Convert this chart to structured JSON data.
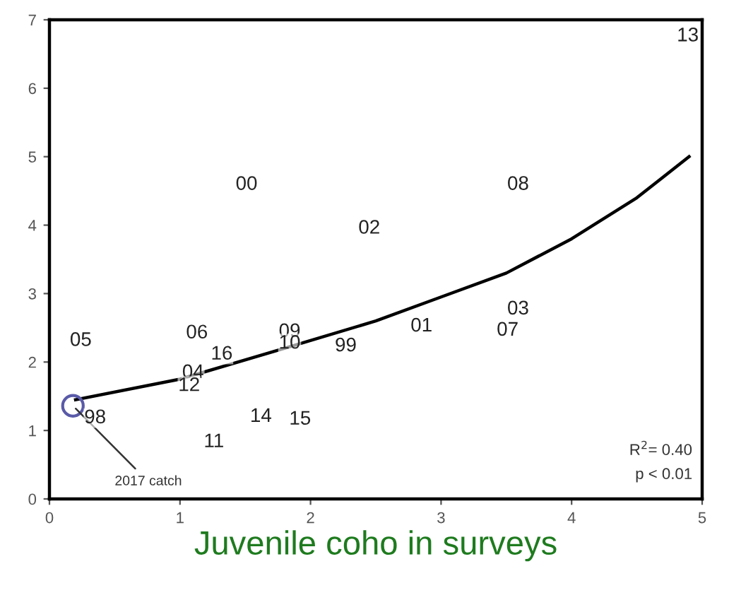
{
  "chart_data": {
    "type": "scatter",
    "xlabel": "Juvenile coho in surveys",
    "xlim": [
      0,
      5
    ],
    "ylim": [
      0,
      7
    ],
    "xticks": [
      0,
      1,
      2,
      3,
      4,
      5
    ],
    "yticks": [
      0,
      1,
      2,
      3,
      4,
      5,
      6,
      7
    ],
    "grid": false,
    "legend": false,
    "series": [
      {
        "type": "line",
        "color": "#000000",
        "x": [
          0.2,
          1.0,
          1.8,
          2.5,
          3.0,
          3.5,
          4.0,
          4.5,
          4.9
        ],
        "values": [
          1.45,
          1.75,
          2.2,
          2.6,
          2.95,
          3.3,
          3.8,
          4.4,
          5.0
        ]
      },
      {
        "marker": "circle",
        "color": "#5a5aa8",
        "x": [
          0.18
        ],
        "values": [
          1.36
        ]
      }
    ],
    "annotations": [
      {
        "text": "05",
        "x": 0.24,
        "y": 2.31
      },
      {
        "text": "06",
        "x": 1.13,
        "y": 2.42
      },
      {
        "text": "00",
        "x": 1.51,
        "y": 4.59
      },
      {
        "text": "16",
        "x": 1.32,
        "y": 2.11
      },
      {
        "text": "04",
        "x": 1.1,
        "y": 1.84
      },
      {
        "text": "12",
        "x": 1.07,
        "y": 1.65
      },
      {
        "text": "09",
        "x": 1.84,
        "y": 2.44
      },
      {
        "text": "10",
        "x": 1.84,
        "y": 2.27
      },
      {
        "text": "99",
        "x": 2.27,
        "y": 2.23
      },
      {
        "text": "02",
        "x": 2.45,
        "y": 3.95
      },
      {
        "text": "01",
        "x": 2.85,
        "y": 2.52
      },
      {
        "text": "07",
        "x": 3.51,
        "y": 2.46
      },
      {
        "text": "03",
        "x": 3.59,
        "y": 2.77
      },
      {
        "text": "08",
        "x": 3.59,
        "y": 4.59
      },
      {
        "text": "13",
        "x": 4.89,
        "y": 6.76
      },
      {
        "text": "98",
        "x": 0.35,
        "y": 1.18
      },
      {
        "text": "11",
        "x": 1.26,
        "y": 0.83
      },
      {
        "text": "14",
        "x": 1.62,
        "y": 1.2
      },
      {
        "text": "15",
        "x": 1.92,
        "y": 1.16
      },
      {
        "text": "2017 catch",
        "x": 0.18,
        "y": 1.36
      },
      "R$^{2}$= 0.40",
      "p < 0.01"
    ]
  }
}
